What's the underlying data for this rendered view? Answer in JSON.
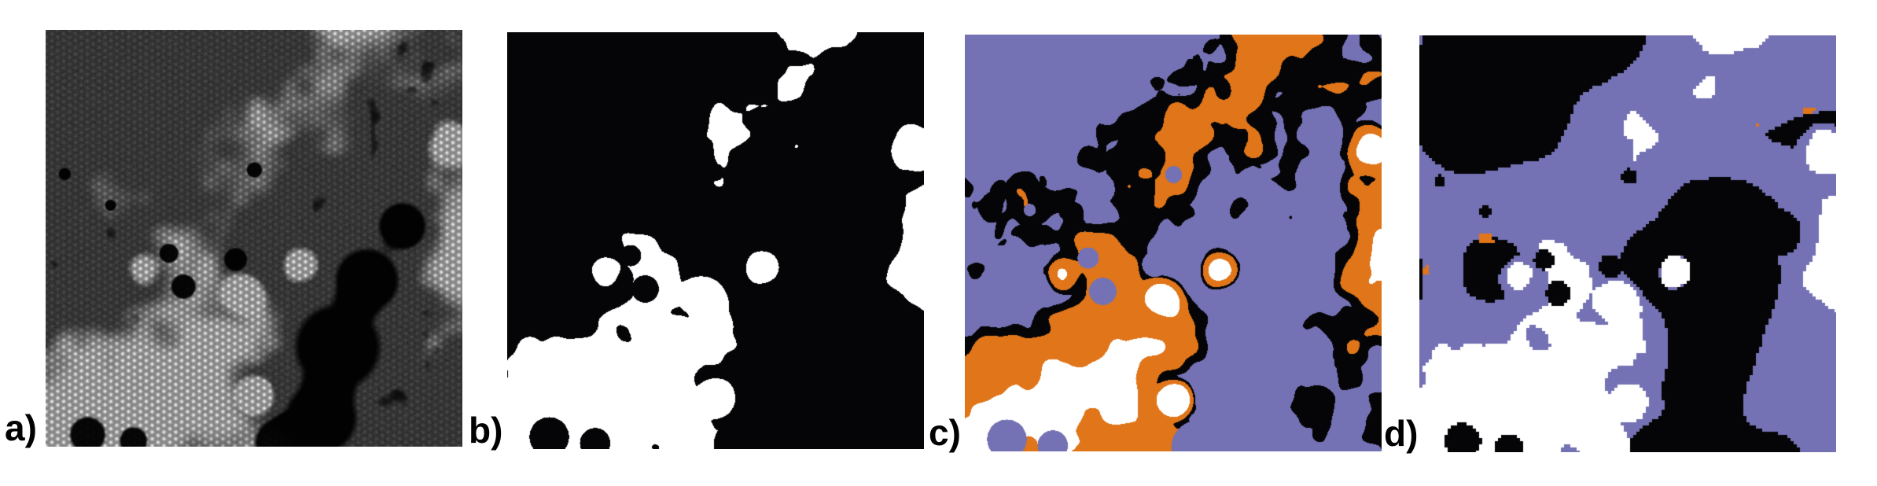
{
  "figure": {
    "background": "#ffffff",
    "label_color": "#000000",
    "panels": [
      {
        "label": "a)",
        "kind": "grayscale-stem-micrograph"
      },
      {
        "label": "b)",
        "kind": "binary-segmentation-mask"
      },
      {
        "label": "c)",
        "kind": "multiclass-threshold-segmentation"
      },
      {
        "label": "d)",
        "kind": "multiclass-smoothed-segmentation"
      }
    ],
    "palette": {
      "black": "#050507",
      "white": "#ffffff",
      "purple": "#7472b4",
      "orange": "#e0751a",
      "micrograph_dark": "#262626",
      "micrograph_bright": "#c0c0c0"
    }
  },
  "render": {
    "size": 530,
    "lattice_spacing": 7.5,
    "seeds": {
      "ridge": 7.3,
      "speckle": 19.7,
      "grain": 33.1
    },
    "voids": [
      [
        0.7,
        0.76,
        0.155
      ],
      [
        0.77,
        0.6,
        0.115
      ],
      [
        0.855,
        0.47,
        0.085
      ],
      [
        0.66,
        0.93,
        0.13
      ],
      [
        0.56,
        0.99,
        0.09
      ],
      [
        0.33,
        0.615,
        0.045
      ],
      [
        0.295,
        0.535,
        0.035
      ],
      [
        0.455,
        0.55,
        0.042
      ],
      [
        0.1,
        0.97,
        0.065
      ],
      [
        0.21,
        0.985,
        0.05
      ],
      [
        0.045,
        0.345,
        0.022
      ],
      [
        0.5,
        0.335,
        0.028
      ],
      [
        0.155,
        0.42,
        0.02
      ]
    ],
    "brights": [
      [
        0.615,
        0.565,
        0.075,
        0.55
      ],
      [
        0.505,
        0.875,
        0.06,
        0.6
      ],
      [
        0.475,
        0.63,
        0.07,
        0.35
      ],
      [
        0.97,
        0.27,
        0.08,
        0.35
      ],
      [
        0.225,
        0.575,
        0.06,
        0.3
      ]
    ],
    "thresholds": {
      "b_white": 0.64,
      "c_white": 0.755,
      "c_orange": 0.615,
      "c_black": 0.555,
      "c_speckle": 0.8,
      "d_black": 0.487,
      "d_white": 0.655
    }
  }
}
